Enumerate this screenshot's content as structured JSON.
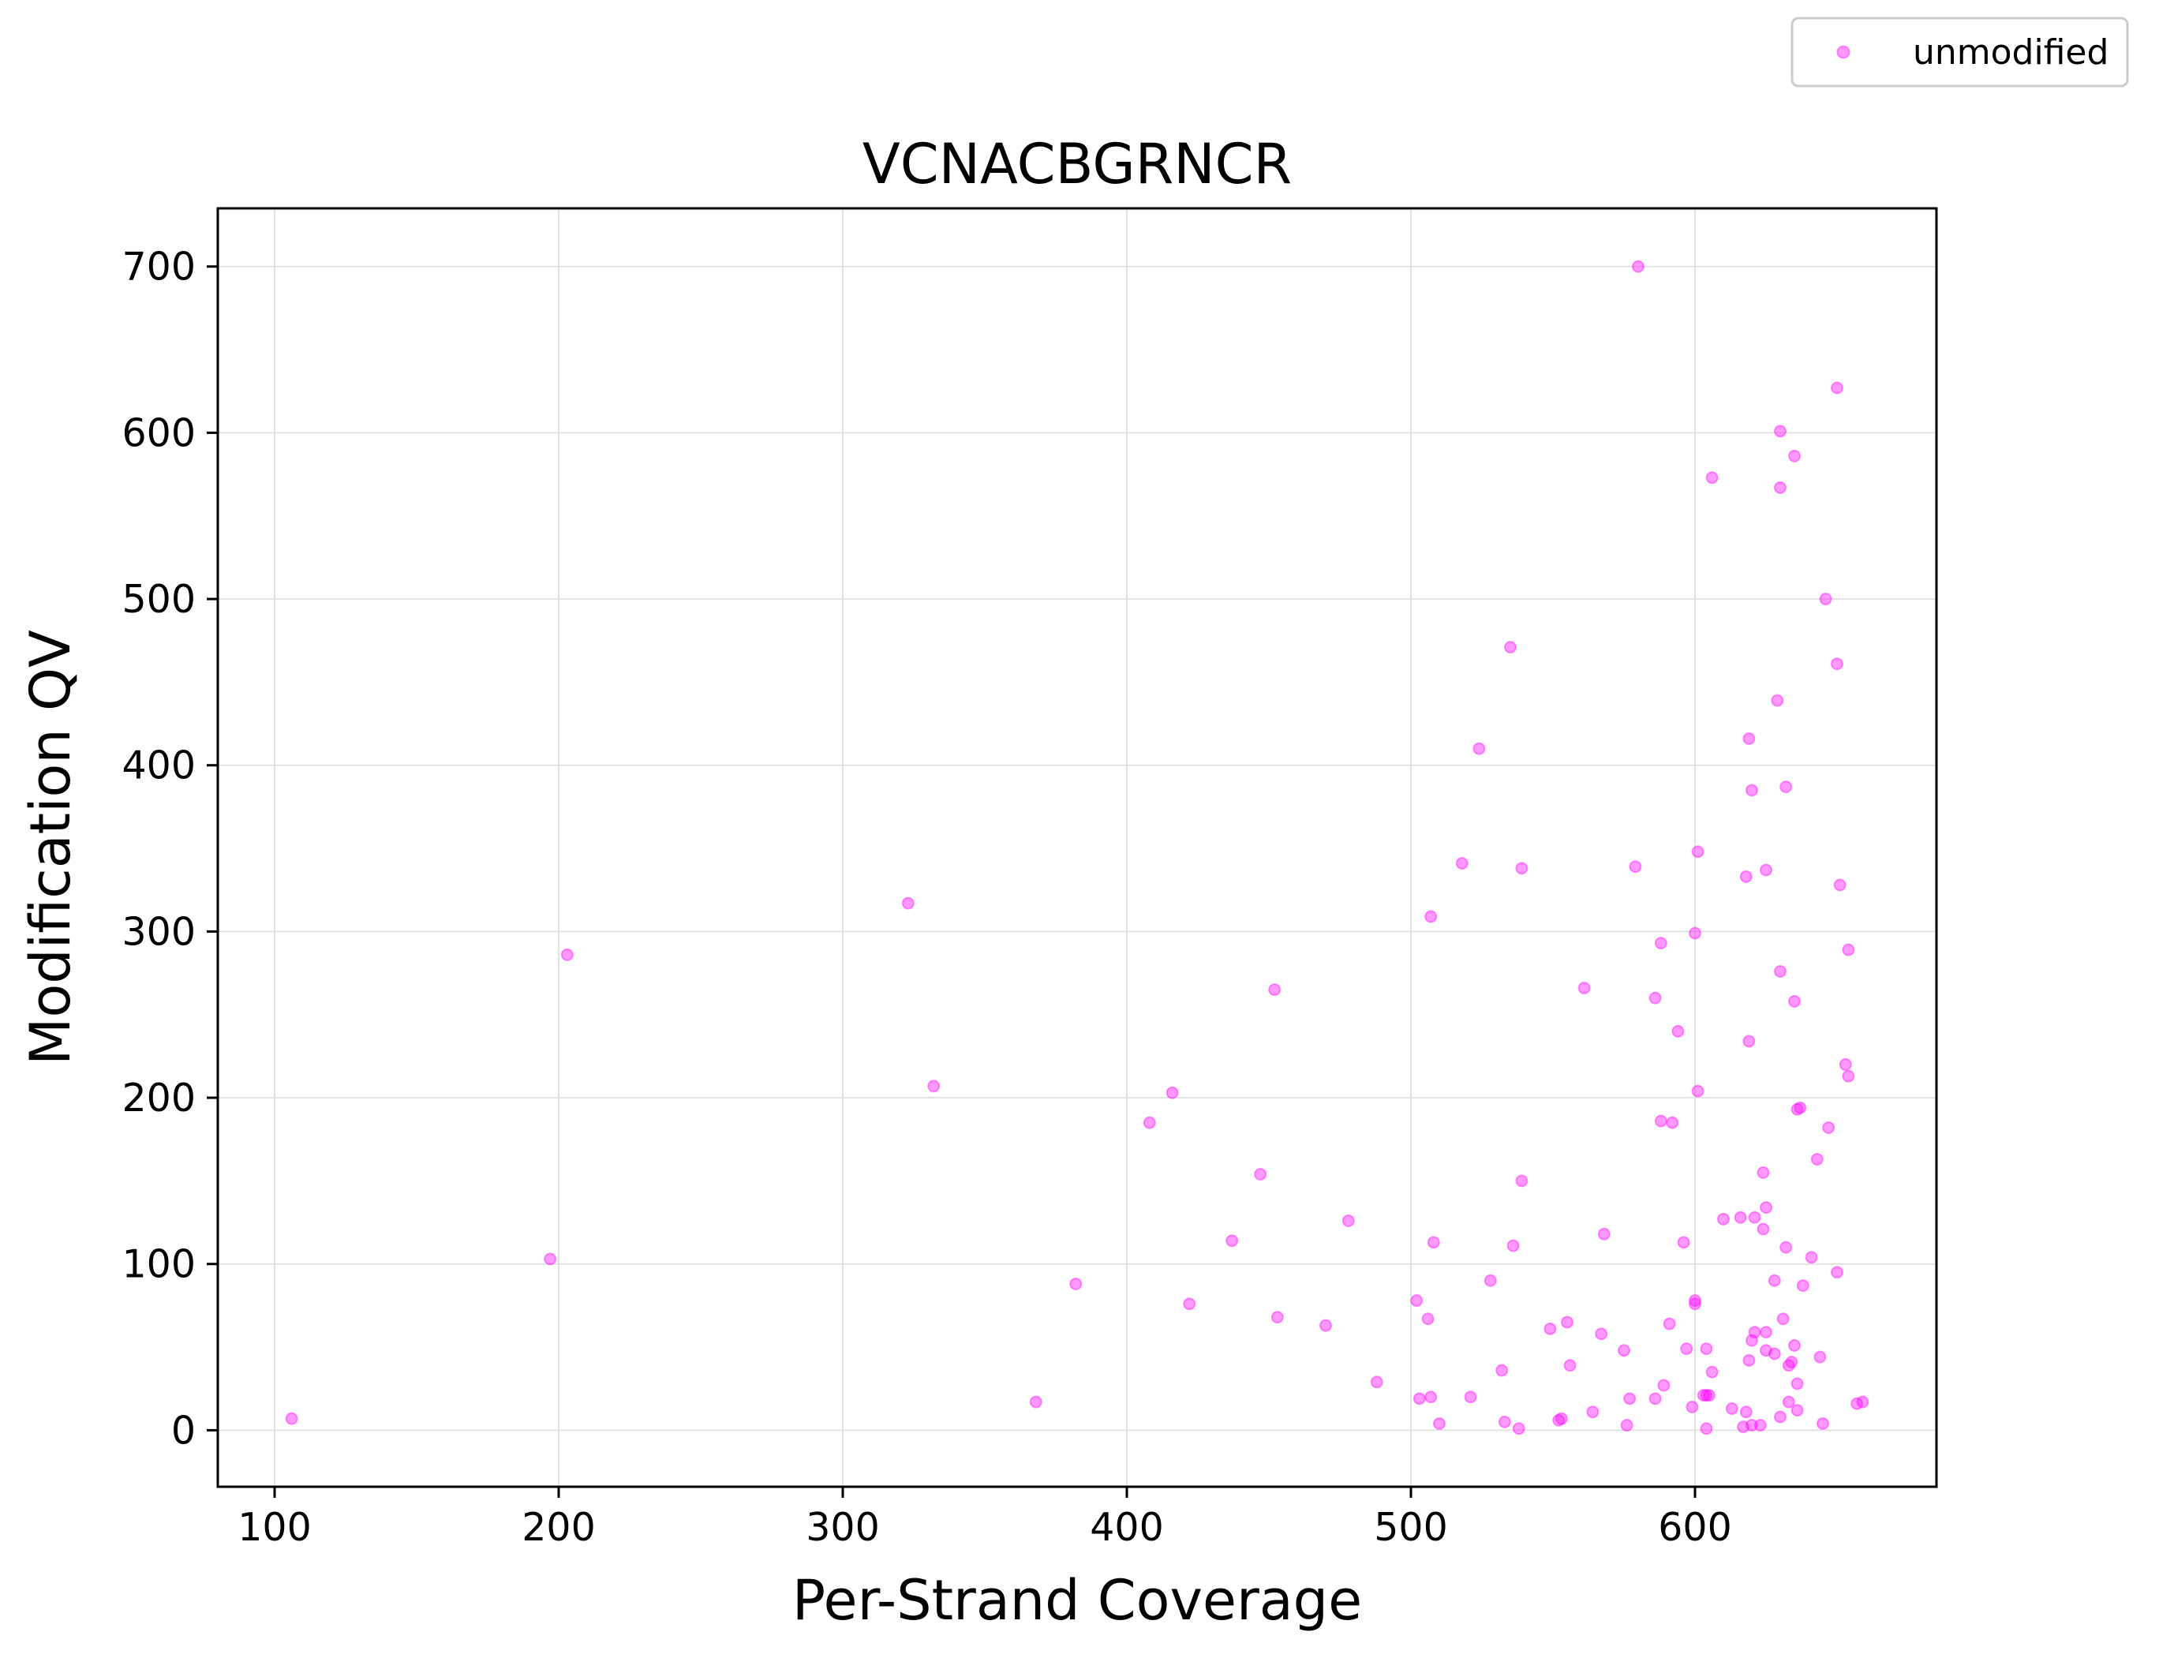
{
  "chart_data": {
    "type": "scatter",
    "title": "VCNACBGRNCR",
    "xlabel": "Per-Strand Coverage",
    "ylabel": "Modification QV",
    "xlim": [
      80,
      685
    ],
    "ylim": [
      -34,
      735
    ],
    "x_ticks": [
      100,
      200,
      300,
      400,
      500,
      600
    ],
    "y_ticks": [
      0,
      100,
      200,
      300,
      400,
      500,
      600,
      700
    ],
    "grid": true,
    "legend": {
      "placement": "top-right",
      "entries": [
        "unmodified"
      ]
    },
    "marker_color": "#ff00ff",
    "series": [
      {
        "name": "unmodified",
        "points": [
          [
            106,
            7
          ],
          [
            197,
            103
          ],
          [
            203,
            286
          ],
          [
            323,
            317
          ],
          [
            332,
            207
          ],
          [
            368,
            17
          ],
          [
            382,
            88
          ],
          [
            408,
            185
          ],
          [
            416,
            203
          ],
          [
            422,
            76
          ],
          [
            437,
            114
          ],
          [
            447,
            154
          ],
          [
            452,
            265
          ],
          [
            453,
            68
          ],
          [
            470,
            63
          ],
          [
            478,
            126
          ],
          [
            488,
            29
          ],
          [
            502,
            78
          ],
          [
            503,
            19
          ],
          [
            506,
            67
          ],
          [
            507,
            309
          ],
          [
            507,
            20
          ],
          [
            508,
            113
          ],
          [
            510,
            4
          ],
          [
            518,
            341
          ],
          [
            521,
            20
          ],
          [
            524,
            410
          ],
          [
            528,
            90
          ],
          [
            532,
            36
          ],
          [
            533,
            5
          ],
          [
            535,
            471
          ],
          [
            536,
            111
          ],
          [
            538,
            1
          ],
          [
            539,
            338
          ],
          [
            539,
            150
          ],
          [
            549,
            61
          ],
          [
            552,
            6
          ],
          [
            553,
            7
          ],
          [
            555,
            65
          ],
          [
            556,
            39
          ],
          [
            561,
            266
          ],
          [
            564,
            11
          ],
          [
            567,
            58
          ],
          [
            568,
            118
          ],
          [
            575,
            48
          ],
          [
            576,
            3
          ],
          [
            577,
            19
          ],
          [
            579,
            339
          ],
          [
            580,
            700
          ],
          [
            586,
            260
          ],
          [
            586,
            19
          ],
          [
            588,
            293
          ],
          [
            588,
            186
          ],
          [
            589,
            27
          ],
          [
            591,
            64
          ],
          [
            592,
            185
          ],
          [
            594,
            240
          ],
          [
            596,
            113
          ],
          [
            597,
            49
          ],
          [
            599,
            14
          ],
          [
            600,
            299
          ],
          [
            600,
            78
          ],
          [
            600,
            76
          ],
          [
            601,
            348
          ],
          [
            601,
            204
          ],
          [
            603,
            21
          ],
          [
            604,
            49
          ],
          [
            604,
            21
          ],
          [
            604,
            1
          ],
          [
            605,
            21
          ],
          [
            606,
            573
          ],
          [
            606,
            35
          ],
          [
            610,
            127
          ],
          [
            613,
            13
          ],
          [
            616,
            128
          ],
          [
            617,
            2
          ],
          [
            618,
            333
          ],
          [
            618,
            11
          ],
          [
            619,
            416
          ],
          [
            619,
            234
          ],
          [
            619,
            42
          ],
          [
            620,
            3
          ],
          [
            620,
            385
          ],
          [
            620,
            54
          ],
          [
            621,
            128
          ],
          [
            621,
            59
          ],
          [
            623,
            3
          ],
          [
            624,
            155
          ],
          [
            624,
            121
          ],
          [
            625,
            337
          ],
          [
            625,
            134
          ],
          [
            625,
            59
          ],
          [
            625,
            48
          ],
          [
            628,
            90
          ],
          [
            628,
            46
          ],
          [
            629,
            439
          ],
          [
            630,
            601
          ],
          [
            630,
            567
          ],
          [
            630,
            276
          ],
          [
            630,
            8
          ],
          [
            631,
            67
          ],
          [
            632,
            387
          ],
          [
            632,
            110
          ],
          [
            633,
            39
          ],
          [
            633,
            17
          ],
          [
            634,
            41
          ],
          [
            635,
            586
          ],
          [
            635,
            258
          ],
          [
            635,
            51
          ],
          [
            636,
            193
          ],
          [
            636,
            28
          ],
          [
            636,
            12
          ],
          [
            637,
            194
          ],
          [
            638,
            87
          ],
          [
            641,
            104
          ],
          [
            643,
            163
          ],
          [
            644,
            44
          ],
          [
            645,
            4
          ],
          [
            646,
            500
          ],
          [
            647,
            182
          ],
          [
            650,
            627
          ],
          [
            650,
            461
          ],
          [
            650,
            95
          ],
          [
            651,
            328
          ],
          [
            653,
            220
          ],
          [
            654,
            289
          ],
          [
            654,
            213
          ],
          [
            657,
            16
          ],
          [
            659,
            17
          ]
        ]
      }
    ]
  }
}
